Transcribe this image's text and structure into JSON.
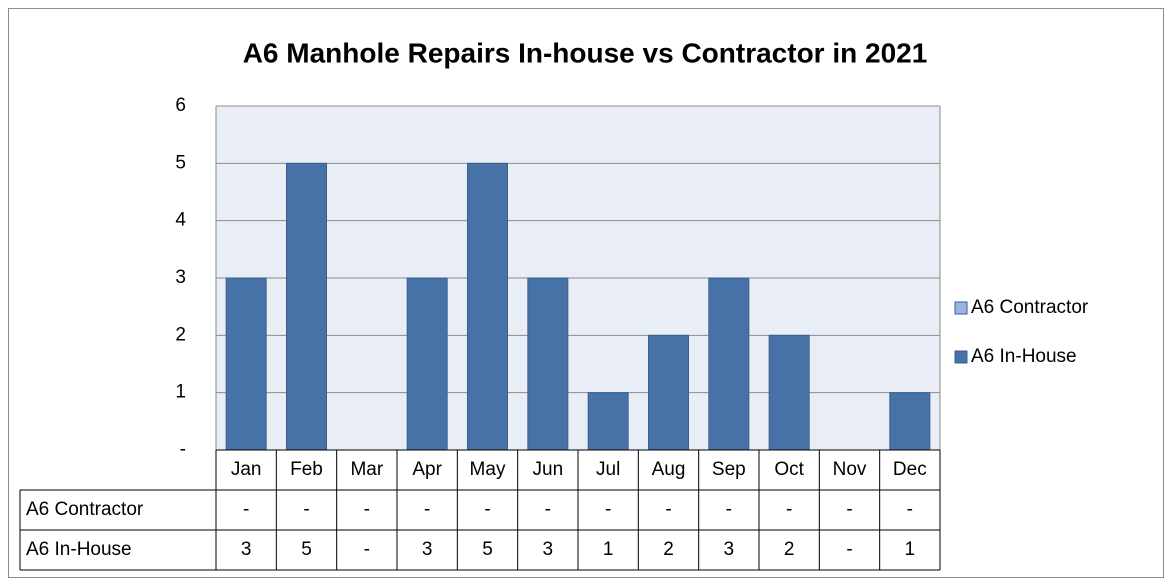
{
  "chart_data": {
    "type": "bar",
    "stacked": true,
    "title": "A6 Manhole Repairs In-house vs Contractor in 2021",
    "categories": [
      "Jan",
      "Feb",
      "Mar",
      "Apr",
      "May",
      "Jun",
      "Jul",
      "Aug",
      "Sep",
      "Oct",
      "Nov",
      "Dec"
    ],
    "series": [
      {
        "name": "A6 Contractor",
        "color": "#9bb3de",
        "values": [
          0,
          0,
          0,
          0,
          0,
          0,
          0,
          0,
          0,
          0,
          0,
          0
        ],
        "value_labels": [
          "-",
          "-",
          "-",
          "-",
          "-",
          "-",
          "-",
          "-",
          "-",
          "-",
          "-",
          "-"
        ]
      },
      {
        "name": "A6 In-House",
        "color": "#4672a8",
        "values": [
          3,
          5,
          0,
          3,
          5,
          3,
          1,
          2,
          3,
          2,
          0,
          1
        ],
        "value_labels": [
          "3",
          "5",
          "-",
          "3",
          "5",
          "3",
          "1",
          "2",
          "3",
          "2",
          "-",
          "1"
        ]
      }
    ],
    "ylim": [
      0,
      6
    ],
    "yticks": [
      {
        "value": 0,
        "label": "-"
      },
      1,
      2,
      3,
      4,
      5,
      6
    ],
    "grid": true,
    "legend": "right",
    "data_table": true
  }
}
